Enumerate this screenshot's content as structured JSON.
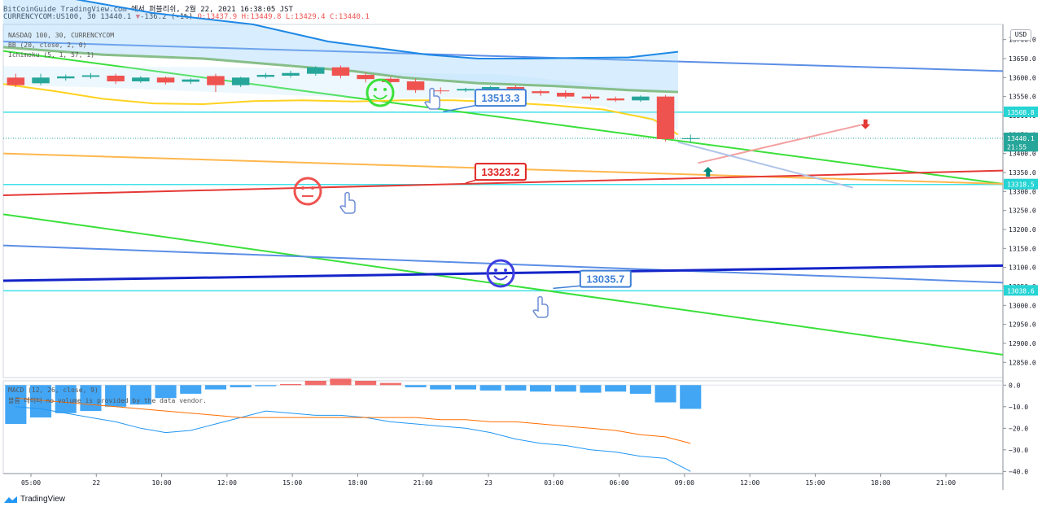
{
  "header": {
    "line1": "BitCoinGuide TradingView.com 에서 퍼블리쉬, 2월 22, 2021 16:38:05 JST",
    "symbol": "CURRENCYCOM:US100, 30",
    "last": "13440.1",
    "change_arrow": "▼",
    "change": "-136.2 (-1%)",
    "ohlc": "O:13437.9 H:13449.8 L:13429.4 C:13440.1"
  },
  "indicators": {
    "series_name": "NASDAQ 100, 30, CURRENCYCOM",
    "bb": "BB (20, close, 2, 0)",
    "ichimoku": "Ichimoku (5, 1, 57, 1)",
    "macd": "MACD (12, 26, close, 9)",
    "volume_note": "볼륨 데이터 no volume is provided by the data vendor."
  },
  "currency_button": "USD",
  "brand": "TradingView",
  "colors": {
    "up": "#26a69a",
    "down": "#ef5350",
    "green_line": "#3ae03a",
    "blue_line": "#5b8ee6",
    "navy_line": "#1424c8",
    "red_line": "#e53935",
    "orange_line": "#ffb74d",
    "cyan_line": "#40e0e8",
    "macd_hist": "#2196f3",
    "macd_line": "#2196f3",
    "signal_line": "#ff6d00"
  },
  "chart_data": {
    "type": "line",
    "price_axis": {
      "min": 12810,
      "max": 13740,
      "ticks": [
        "13700.0",
        "13650.0",
        "13600.0",
        "13550.0",
        "13500.0",
        "13450.0",
        "13400.0",
        "13350.0",
        "13300.0",
        "13250.0",
        "13200.0",
        "13150.0",
        "13100.0",
        "13050.0",
        "13000.0",
        "12950.0",
        "12900.0",
        "12850.0"
      ]
    },
    "price_tags": [
      {
        "label": "13508.8",
        "value": 13508.8,
        "color": "#26d4d4"
      },
      {
        "label": "13440.1",
        "value": 13440.1,
        "color": "#26a69a"
      },
      {
        "label": "21:55",
        "value": 13418,
        "color": "#26a69a"
      },
      {
        "label": "13318.5",
        "value": 13318.5,
        "color": "#26d4d4"
      },
      {
        "label": "13038.6",
        "value": 13038.6,
        "color": "#26d4d4"
      }
    ],
    "time_axis": {
      "ticks": [
        "05:00",
        "22",
        "10:00",
        "12:00",
        "15:00",
        "18:00",
        "21:00",
        "23",
        "03:00",
        "06:00",
        "09:00",
        "12:00",
        "15:00",
        "18:00",
        "21:00"
      ],
      "t_range": [
        0,
        40
      ]
    },
    "candles": [
      {
        "t": 0,
        "o": 13600,
        "h": 13610,
        "c": 13580,
        "l": 13575
      },
      {
        "t": 1,
        "o": 13585,
        "h": 13610,
        "c": 13600,
        "l": 13580
      },
      {
        "t": 2,
        "o": 13598,
        "h": 13608,
        "c": 13603,
        "l": 13592
      },
      {
        "t": 3,
        "o": 13602,
        "h": 13612,
        "c": 13606,
        "l": 13597
      },
      {
        "t": 4,
        "o": 13605,
        "h": 13610,
        "c": 13590,
        "l": 13583
      },
      {
        "t": 5,
        "o": 13590,
        "h": 13604,
        "c": 13600,
        "l": 13586
      },
      {
        "t": 6,
        "o": 13600,
        "h": 13603,
        "c": 13587,
        "l": 13582
      },
      {
        "t": 7,
        "o": 13589,
        "h": 13598,
        "c": 13595,
        "l": 13583
      },
      {
        "t": 8,
        "o": 13604,
        "h": 13610,
        "c": 13580,
        "l": 13562
      },
      {
        "t": 9,
        "o": 13580,
        "h": 13602,
        "c": 13600,
        "l": 13575
      },
      {
        "t": 10,
        "o": 13602,
        "h": 13612,
        "c": 13607,
        "l": 13598
      },
      {
        "t": 11,
        "o": 13605,
        "h": 13618,
        "c": 13612,
        "l": 13600
      },
      {
        "t": 12,
        "o": 13610,
        "h": 13630,
        "c": 13627,
        "l": 13605
      },
      {
        "t": 13,
        "o": 13627,
        "h": 13632,
        "c": 13605,
        "l": 13598
      },
      {
        "t": 14,
        "o": 13607,
        "h": 13613,
        "c": 13596,
        "l": 13587
      },
      {
        "t": 15,
        "o": 13597,
        "h": 13602,
        "c": 13588,
        "l": 13580
      },
      {
        "t": 16,
        "o": 13590,
        "h": 13597,
        "c": 13567,
        "l": 13560
      },
      {
        "t": 17,
        "o": 13566,
        "h": 13574,
        "c": 13564,
        "l": 13557
      },
      {
        "t": 18,
        "o": 13566,
        "h": 13573,
        "c": 13570,
        "l": 13562
      },
      {
        "t": 19,
        "o": 13570,
        "h": 13578,
        "c": 13575,
        "l": 13565
      },
      {
        "t": 20,
        "o": 13575,
        "h": 13580,
        "c": 13562,
        "l": 13556
      },
      {
        "t": 21,
        "o": 13564,
        "h": 13568,
        "c": 13559,
        "l": 13552
      },
      {
        "t": 22,
        "o": 13560,
        "h": 13566,
        "c": 13550,
        "l": 13545
      },
      {
        "t": 23,
        "o": 13550,
        "h": 13556,
        "c": 13545,
        "l": 13540
      },
      {
        "t": 24,
        "o": 13545,
        "h": 13550,
        "c": 13540,
        "l": 13536
      },
      {
        "t": 25,
        "o": 13540,
        "h": 13553,
        "c": 13550,
        "l": 13536
      },
      {
        "t": 26,
        "o": 13550,
        "h": 13554,
        "c": 13438,
        "l": 13432
      },
      {
        "t": 27,
        "o": 13437.9,
        "h": 13449.8,
        "c": 13440.1,
        "l": 13429.4
      }
    ],
    "bb_upper": [
      [
        0,
        13630
      ],
      [
        4,
        13628
      ],
      [
        8,
        13628
      ],
      [
        12,
        13624
      ],
      [
        16,
        13612
      ],
      [
        20,
        13608
      ],
      [
        24,
        13580
      ],
      [
        27,
        13555
      ]
    ],
    "bb_lower": [
      [
        0,
        13580
      ],
      [
        4,
        13574
      ],
      [
        8,
        13563
      ],
      [
        12,
        13552
      ],
      [
        16,
        13545
      ],
      [
        20,
        13548
      ],
      [
        24,
        13525
      ],
      [
        27,
        13463
      ]
    ],
    "ichimoku_green": [
      [
        0,
        13680
      ],
      [
        4,
        13660
      ],
      [
        8,
        13650
      ],
      [
        12,
        13628
      ],
      [
        14,
        13617
      ],
      [
        16,
        13600
      ],
      [
        19,
        13585
      ],
      [
        22,
        13578
      ],
      [
        25,
        13567
      ],
      [
        27,
        13562
      ]
    ],
    "kijun_blue": [
      [
        0,
        13840
      ],
      [
        6,
        13770
      ],
      [
        10,
        13740
      ],
      [
        13,
        13695
      ],
      [
        17,
        13660
      ],
      [
        19,
        13650
      ],
      [
        21,
        13650
      ],
      [
        23,
        13652
      ],
      [
        25,
        13653
      ],
      [
        27,
        13668
      ]
    ],
    "ichimoku_yellow": [
      [
        0,
        13583
      ],
      [
        2,
        13565
      ],
      [
        4,
        13544
      ],
      [
        6,
        13532
      ],
      [
        8,
        13530
      ],
      [
        10,
        13538
      ],
      [
        12,
        13540
      ],
      [
        14,
        13537
      ],
      [
        16,
        13540
      ],
      [
        18,
        13540
      ],
      [
        20,
        13535
      ],
      [
        22,
        13527
      ],
      [
        24,
        13516
      ],
      [
        26,
        13490
      ],
      [
        27,
        13450
      ]
    ],
    "trendlines": [
      {
        "name": "upper-blue",
        "color": "#5b8ee6",
        "w": 2,
        "p1": [
          0,
          13695
        ],
        "p2": [
          40,
          13617
        ]
      },
      {
        "name": "upper-green",
        "color": "#3ae03a",
        "w": 2,
        "p1": [
          0,
          13670
        ],
        "p2": [
          40,
          13320
        ]
      },
      {
        "name": "orange",
        "color": "#ffb74d",
        "w": 2,
        "p1": [
          0,
          13400
        ],
        "p2": [
          40,
          13320
        ]
      },
      {
        "name": "red",
        "color": "#e53935",
        "w": 2,
        "p1": [
          0,
          13290
        ],
        "p2": [
          40,
          13355
        ]
      },
      {
        "name": "lower-green",
        "color": "#3ae03a",
        "w": 2,
        "p1": [
          0,
          13240
        ],
        "p2": [
          40,
          12870
        ]
      },
      {
        "name": "lower-blue",
        "color": "#5b8ee6",
        "w": 2,
        "p1": [
          0,
          13158
        ],
        "p2": [
          40,
          13060
        ]
      },
      {
        "name": "navy",
        "color": "#1424c8",
        "w": 3,
        "p1": [
          0,
          13065
        ],
        "p2": [
          40,
          13105
        ]
      }
    ],
    "hlines": [
      {
        "value": 13508.8,
        "color": "#40e0e8"
      },
      {
        "value": 13318.5,
        "color": "#40e0e8"
      },
      {
        "value": 13038.6,
        "color": "#40e0e8"
      }
    ],
    "callouts": [
      {
        "label": "13513.3",
        "color": "#3f7fd6",
        "t": 19.8,
        "y": 13547,
        "tip": [
          17.6,
          13510
        ]
      },
      {
        "label": "13323.2",
        "color": "#e02020",
        "t": 19.8,
        "y": 13352,
        "tip": [
          18.5,
          13322
        ]
      },
      {
        "label": "13035.7",
        "color": "#3f7fd6",
        "t": 24.0,
        "y": 13070,
        "tip": [
          22.0,
          13045
        ]
      }
    ],
    "macd": {
      "axis_min": -41,
      "axis_max": 2,
      "ticks": [
        "0.0",
        "−10.0",
        "−20.0",
        "−30.0",
        "−40.0"
      ],
      "tick_values": [
        0,
        -10,
        -20,
        -30,
        -40
      ],
      "hist": [
        -18,
        -15,
        -13,
        -12,
        -10,
        -9,
        -6,
        -4,
        -2,
        -1,
        -0.5,
        0.5,
        2,
        3,
        2,
        1,
        -1,
        -2,
        -2,
        -2.5,
        -2.5,
        -3,
        -3,
        -3.5,
        -3,
        -4,
        -8,
        -11
      ],
      "macd_line": [
        -10,
        -11,
        -13,
        -15,
        -17,
        -20,
        -22,
        -21,
        -18,
        -15,
        -12,
        -13,
        -14,
        -14,
        -15,
        -17,
        -18,
        -19,
        -20,
        -22,
        -25,
        -27,
        -28,
        -30,
        -31,
        -33,
        -34,
        -40
      ],
      "signal_line": [
        -6,
        -7,
        -8,
        -9,
        -10,
        -11,
        -12,
        -13,
        -14,
        -15,
        -15,
        -15,
        -15,
        -15,
        -15,
        -15,
        -15,
        -16,
        -16,
        -17,
        -17,
        -18,
        -19,
        -20,
        -21,
        -23,
        -24,
        -27
      ]
    }
  }
}
